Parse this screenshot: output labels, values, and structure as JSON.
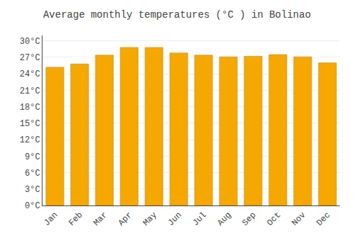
{
  "chart_data": {
    "type": "bar",
    "title": "Average monthly temperatures (°C ) in Bolinao",
    "categories": [
      "Jan",
      "Feb",
      "Mar",
      "Apr",
      "May",
      "Jun",
      "Jul",
      "Aug",
      "Sep",
      "Oct",
      "Nov",
      "Dec"
    ],
    "values": [
      25.2,
      25.8,
      27.4,
      28.8,
      28.8,
      27.8,
      27.4,
      27.1,
      27.2,
      27.5,
      27.1,
      26.0
    ],
    "color": "#F5A800",
    "ylim": [
      0,
      31
    ],
    "yticks": [
      {
        "value": 0,
        "label": "0°C"
      },
      {
        "value": 3,
        "label": "3°C"
      },
      {
        "value": 6,
        "label": "6°C"
      },
      {
        "value": 9,
        "label": "9°C"
      },
      {
        "value": 12,
        "label": "12°C"
      },
      {
        "value": 15,
        "label": "15°C"
      },
      {
        "value": 18,
        "label": "18°C"
      },
      {
        "value": 21,
        "label": "21°C"
      },
      {
        "value": 24,
        "label": "24°C"
      },
      {
        "value": 27,
        "label": "27°C"
      },
      {
        "value": 30,
        "label": "30°C"
      }
    ],
    "grid": true
  }
}
